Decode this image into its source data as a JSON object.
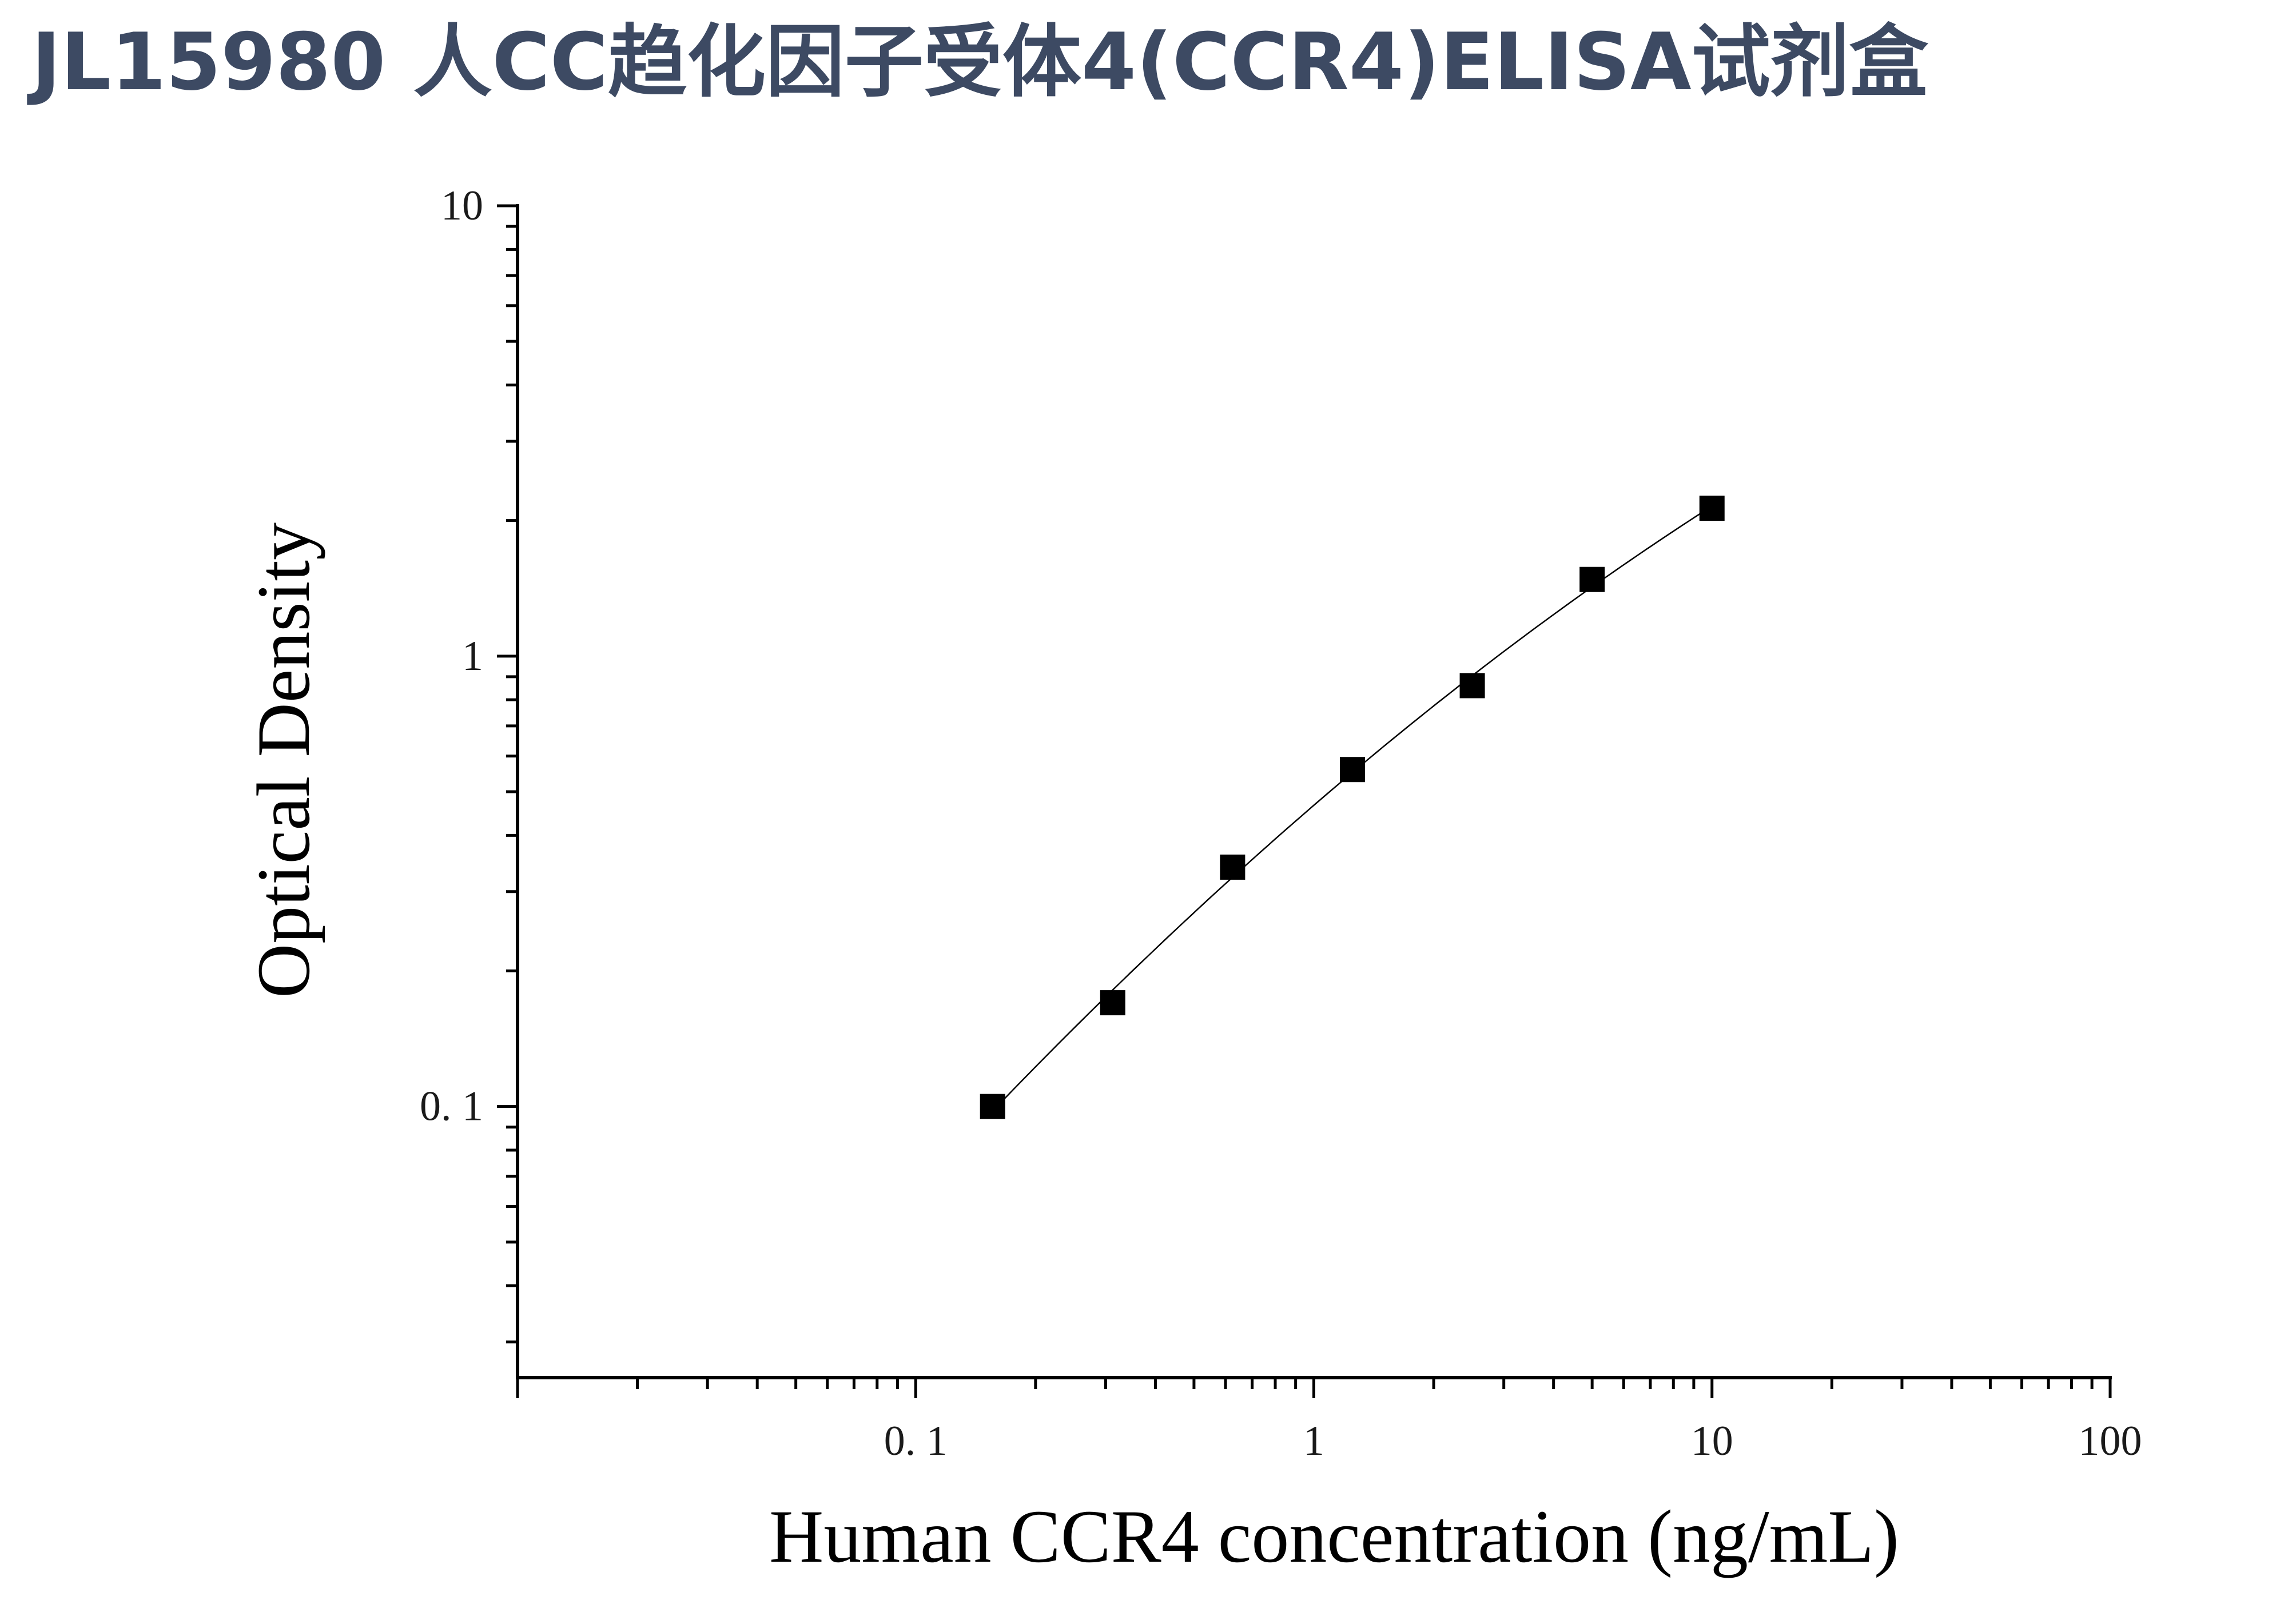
{
  "title": "JL15980 人CC趋化因子受体4(CCR4)ELISA试剂盒",
  "chart_data": {
    "type": "scatter",
    "xlabel": "Human CCR4 concentration (ng/mL)",
    "ylabel": "Optical Density",
    "xscale": "log",
    "yscale": "log",
    "xlim": [
      0.01,
      100
    ],
    "ylim": [
      0.025,
      10
    ],
    "x_ticks": [
      {
        "value": 0.1,
        "label": "0. 1"
      },
      {
        "value": 1,
        "label": "1"
      },
      {
        "value": 10,
        "label": "10"
      },
      {
        "value": 100,
        "label": "100"
      }
    ],
    "y_ticks": [
      {
        "value": 0.1,
        "label": "0. 1"
      },
      {
        "value": 1,
        "label": "1"
      },
      {
        "value": 10,
        "label": "10"
      }
    ],
    "grid": false,
    "legend": "none",
    "marker": "square",
    "marker_color": "#000000",
    "fit_curve": true,
    "series": [
      {
        "x": [
          0.156,
          0.3125,
          0.625,
          1.25,
          2.5,
          5,
          10
        ],
        "y": [
          0.1,
          0.17,
          0.34,
          0.56,
          0.86,
          1.48,
          2.13
        ]
      }
    ]
  }
}
